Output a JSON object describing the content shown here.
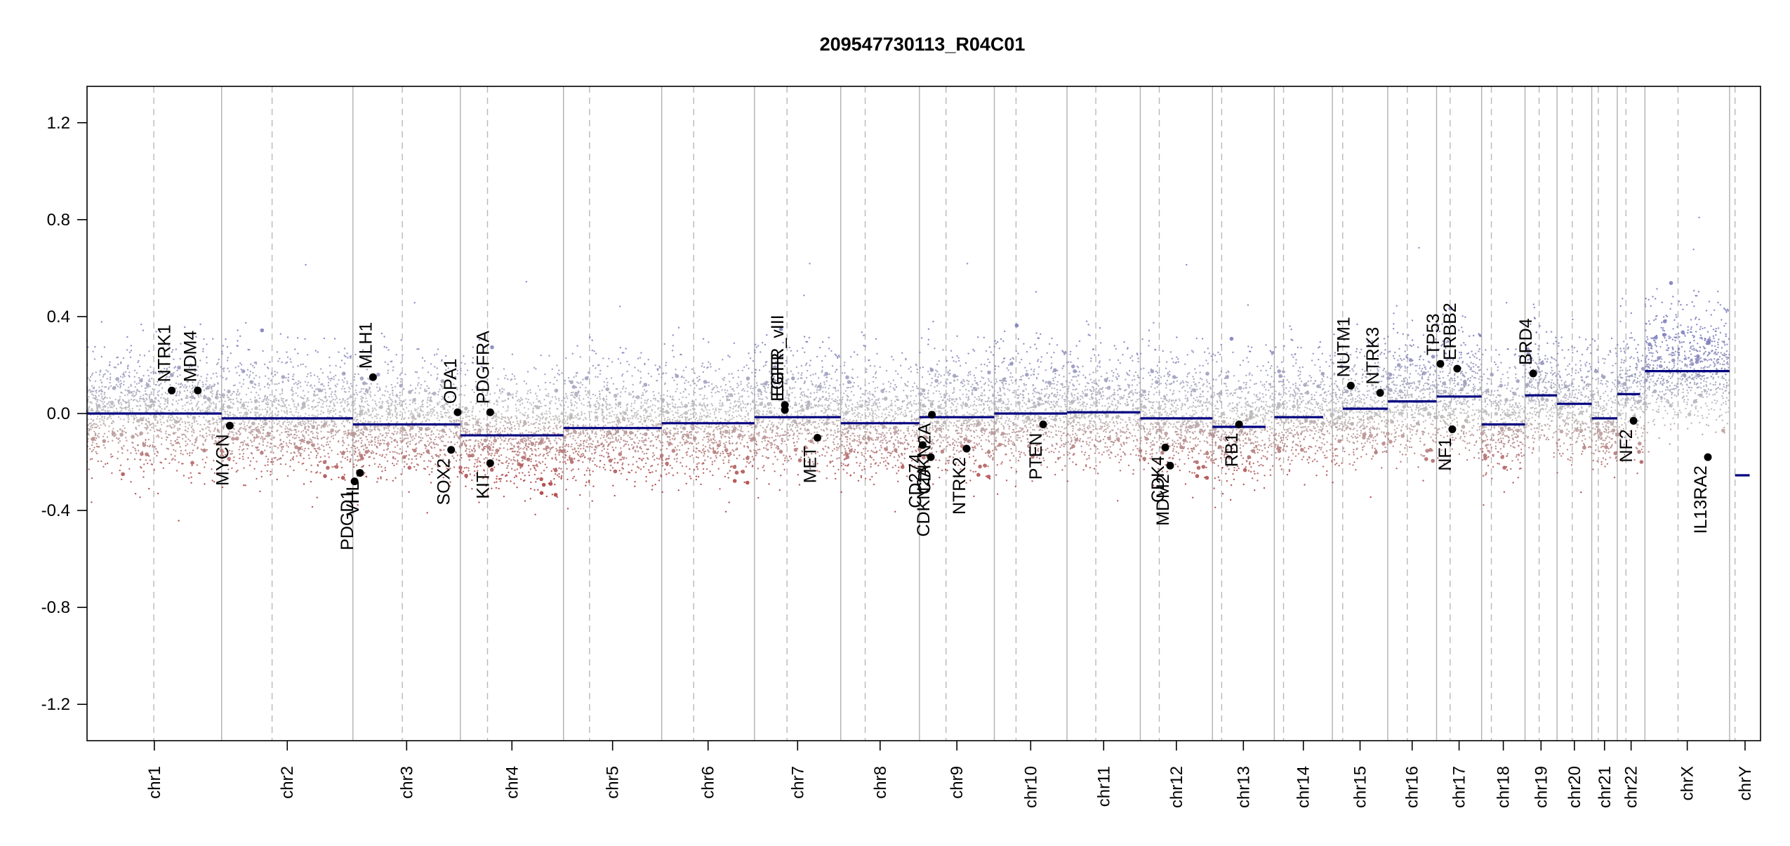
{
  "chart_data": {
    "type": "scatter",
    "title": "209547730113_R04C01",
    "xlabel": "",
    "ylabel": "",
    "ylim": [
      -1.35,
      1.35
    ],
    "y_ticks": [
      -1.2,
      -0.8,
      -0.4,
      0.0,
      0.4,
      0.8,
      1.2
    ],
    "y_tick_labels": [
      "-1.2",
      "-0.8",
      "-0.4",
      "0.0",
      "0.4",
      "0.8",
      "1.2"
    ],
    "grid": false,
    "colors": {
      "gain": "#7777bb",
      "loss": "#aa3333",
      "neutral": "#bbbbbb",
      "segment": "#00007f",
      "gene_point": "#000000",
      "chrom_boundary": "#b0b0b0",
      "centromere": "#b8b8b8"
    },
    "chromosomes": [
      {
        "label": "chr1",
        "start": 0,
        "end": 248,
        "cen": 123
      },
      {
        "label": "chr2",
        "start": 248,
        "end": 490,
        "cen": 341
      },
      {
        "label": "chr3",
        "start": 490,
        "end": 688,
        "cen": 581
      },
      {
        "label": "chr4",
        "start": 688,
        "end": 878,
        "cen": 738
      },
      {
        "label": "chr5",
        "start": 878,
        "end": 1059,
        "cen": 926
      },
      {
        "label": "chr6",
        "start": 1059,
        "end": 1230,
        "cen": 1118
      },
      {
        "label": "chr7",
        "start": 1230,
        "end": 1389,
        "cen": 1290
      },
      {
        "label": "chr8",
        "start": 1389,
        "end": 1534,
        "cen": 1434
      },
      {
        "label": "chr9",
        "start": 1534,
        "end": 1672,
        "cen": 1583
      },
      {
        "label": "chr10",
        "start": 1672,
        "end": 1806,
        "cen": 1712
      },
      {
        "label": "chr11",
        "start": 1806,
        "end": 1941,
        "cen": 1859
      },
      {
        "label": "chr12",
        "start": 1941,
        "end": 2074,
        "cen": 1976
      },
      {
        "label": "chr13",
        "start": 2074,
        "end": 2188,
        "cen": 2091
      },
      {
        "label": "chr14",
        "start": 2188,
        "end": 2295,
        "cen": 2205
      },
      {
        "label": "chr15",
        "start": 2295,
        "end": 2397,
        "cen": 2314
      },
      {
        "label": "chr16",
        "start": 2397,
        "end": 2487,
        "cen": 2433
      },
      {
        "label": "chr17",
        "start": 2487,
        "end": 2570,
        "cen": 2512
      },
      {
        "label": "chr18",
        "start": 2570,
        "end": 2650,
        "cen": 2588
      },
      {
        "label": "chr19",
        "start": 2650,
        "end": 2709,
        "cen": 2676
      },
      {
        "label": "chr20",
        "start": 2709,
        "end": 2773,
        "cen": 2737
      },
      {
        "label": "chr21",
        "start": 2773,
        "end": 2820,
        "cen": 2785
      },
      {
        "label": "chr22",
        "start": 2820,
        "end": 2871,
        "cen": 2836
      },
      {
        "label": "chrX",
        "start": 2871,
        "end": 3027,
        "cen": 2932
      },
      {
        "label": "chrY",
        "start": 3027,
        "end": 3084,
        "cen": 3037
      }
    ],
    "segments": [
      {
        "chrom": "chr1",
        "start": 0,
        "end": 248,
        "value": 0.0
      },
      {
        "chrom": "chr2",
        "start": 248,
        "end": 490,
        "value": -0.02
      },
      {
        "chrom": "chr3",
        "start": 490,
        "end": 688,
        "value": -0.045
      },
      {
        "chrom": "chr4",
        "start": 688,
        "end": 878,
        "value": -0.09
      },
      {
        "chrom": "chr5",
        "start": 878,
        "end": 1059,
        "value": -0.06
      },
      {
        "chrom": "chr6",
        "start": 1059,
        "end": 1230,
        "value": -0.04
      },
      {
        "chrom": "chr7",
        "start": 1230,
        "end": 1389,
        "value": -0.015
      },
      {
        "chrom": "chr8",
        "start": 1389,
        "end": 1534,
        "value": -0.04
      },
      {
        "chrom": "chr9",
        "start": 1534,
        "end": 1672,
        "value": -0.015
      },
      {
        "chrom": "chr10",
        "start": 1672,
        "end": 1806,
        "value": 0.0
      },
      {
        "chrom": "chr11",
        "start": 1806,
        "end": 1941,
        "value": 0.005
      },
      {
        "chrom": "chr12",
        "start": 1941,
        "end": 2074,
        "value": -0.02
      },
      {
        "chrom": "chr13",
        "start": 2074,
        "end": 2172,
        "value": -0.055
      },
      {
        "chrom": "chr14",
        "start": 2188,
        "end": 2278,
        "value": -0.015
      },
      {
        "chrom": "chr15",
        "start": 2314,
        "end": 2397,
        "value": 0.02
      },
      {
        "chrom": "chr16",
        "start": 2397,
        "end": 2487,
        "value": 0.05
      },
      {
        "chrom": "chr17",
        "start": 2487,
        "end": 2570,
        "value": 0.07
      },
      {
        "chrom": "chr18",
        "start": 2570,
        "end": 2650,
        "value": -0.045
      },
      {
        "chrom": "chr19",
        "start": 2650,
        "end": 2709,
        "value": 0.075
      },
      {
        "chrom": "chr20",
        "start": 2709,
        "end": 2773,
        "value": 0.04
      },
      {
        "chrom": "chr21",
        "start": 2773,
        "end": 2820,
        "value": -0.02
      },
      {
        "chrom": "chr22",
        "start": 2820,
        "end": 2862,
        "value": 0.08
      },
      {
        "chrom": "chrX",
        "start": 2871,
        "end": 3027,
        "value": 0.175
      },
      {
        "chrom": "chrY",
        "start": 3037,
        "end": 3064,
        "value": -0.255
      }
    ],
    "genes": [
      {
        "name": "NTRK1",
        "pos": 156,
        "value": 0.095
      },
      {
        "name": "MDM4",
        "pos": 204,
        "value": 0.095
      },
      {
        "name": "MYCN",
        "pos": 263,
        "value": -0.05
      },
      {
        "name": "PDGD1",
        "pos": 493,
        "value": -0.28
      },
      {
        "name": "VHL",
        "pos": 503,
        "value": -0.245
      },
      {
        "name": "MLH1",
        "pos": 527,
        "value": 0.15
      },
      {
        "name": "SOX2",
        "pos": 671,
        "value": -0.15
      },
      {
        "name": "OPA1",
        "pos": 683,
        "value": 0.005
      },
      {
        "name": "KIT",
        "pos": 743,
        "value": -0.205
      },
      {
        "name": "PDGFRA",
        "pos": 743,
        "value": 0.005
      },
      {
        "name": "EGFR",
        "pos": 1286,
        "value": 0.015
      },
      {
        "name": "EGFR_vIII",
        "pos": 1286,
        "value": 0.035
      },
      {
        "name": "MET",
        "pos": 1346,
        "value": -0.1
      },
      {
        "name": "CD274",
        "pos": 1540,
        "value": -0.13
      },
      {
        "name": "CDKN2A",
        "pos": 1555,
        "value": -0.18
      },
      {
        "name": "CDKN2A",
        "pos": 1557,
        "value": -0.005
      },
      {
        "name": "NTRK2",
        "pos": 1621,
        "value": -0.145
      },
      {
        "name": "PTEN",
        "pos": 1762,
        "value": -0.045
      },
      {
        "name": "MDM2",
        "pos": 1996,
        "value": -0.215
      },
      {
        "name": "CDK4",
        "pos": 1987,
        "value": -0.14
      },
      {
        "name": "RB1",
        "pos": 2123,
        "value": -0.045
      },
      {
        "name": "NUTM1",
        "pos": 2329,
        "value": 0.115
      },
      {
        "name": "NTRK3",
        "pos": 2383,
        "value": 0.085
      },
      {
        "name": "TP53",
        "pos": 2494,
        "value": 0.205
      },
      {
        "name": "ERBB2",
        "pos": 2525,
        "value": 0.185
      },
      {
        "name": "NF1",
        "pos": 2516,
        "value": -0.065
      },
      {
        "name": "BRD4",
        "pos": 2665,
        "value": 0.165
      },
      {
        "name": "NF2",
        "pos": 2850,
        "value": -0.03
      },
      {
        "name": "IL13RA2",
        "pos": 2987,
        "value": -0.18
      }
    ]
  }
}
